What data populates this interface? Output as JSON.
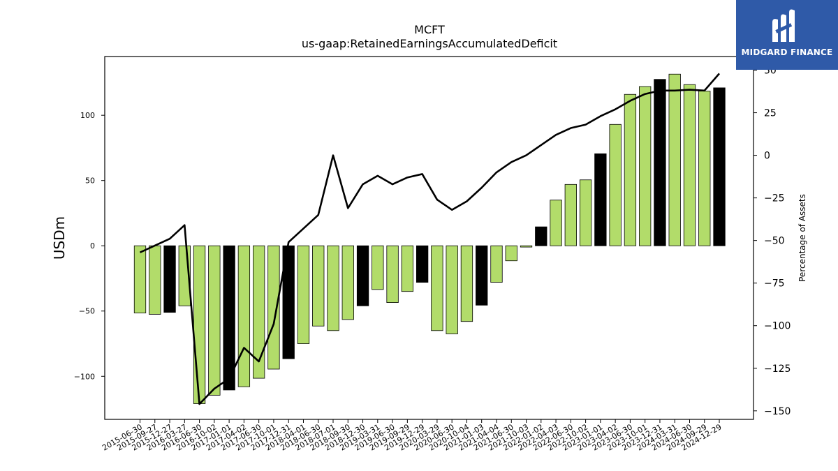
{
  "chart_data": {
    "type": "bar",
    "title": "MCFT",
    "subtitle": "us-gaap:RetainedEarningsAccumulatedDeficit",
    "ylabel": "USDm",
    "y2label": "Percentage of Assets",
    "ylim": [
      -133,
      145
    ],
    "y2lim": [
      -155,
      58
    ],
    "yticks": [
      -100,
      -50,
      0,
      50,
      100
    ],
    "y2ticks": [
      -150,
      -125,
      -100,
      -75,
      -50,
      -25,
      0,
      25,
      50
    ],
    "grid": false,
    "categories": [
      "2015-06-30",
      "2015-09-27",
      "2015-12-27",
      "2016-03-27",
      "2016-06-30",
      "2016-10-02",
      "2017-01-01",
      "2017-04-02",
      "2017-06-30",
      "2017-10-01",
      "2017-12-31",
      "2018-04-01",
      "2018-06-30",
      "2018-07-01",
      "2018-09-30",
      "2018-12-30",
      "2019-03-31",
      "2019-06-30",
      "2019-09-29",
      "2019-12-29",
      "2020-03-29",
      "2020-06-30",
      "2020-10-04",
      "2021-01-03",
      "2021-04-04",
      "2021-06-30",
      "2021-10-03",
      "2022-01-02",
      "2022-04-03",
      "2022-06-30",
      "2022-10-02",
      "2023-01-01",
      "2023-04-02",
      "2023-06-30",
      "2023-10-01",
      "2023-12-31",
      "2024-03-31",
      "2024-06-30",
      "2024-09-29",
      "2024-12-29"
    ],
    "bar_values": [
      -51.5,
      -52.5,
      -51,
      -46,
      -121,
      -114.5,
      -110.5,
      -108,
      -101.5,
      -94.5,
      -86.5,
      -75,
      -61.5,
      -65,
      -56.5,
      -46,
      -33.5,
      -43.5,
      -35,
      -28,
      -65,
      -67.5,
      -58,
      -45.5,
      -28,
      -11.5,
      -1,
      14.5,
      35,
      47,
      50.5,
      70.5,
      93,
      116,
      122,
      127.5,
      131.5,
      123.5,
      118.5,
      121
    ],
    "bar_colors": [
      "#b2dc6a",
      "#b2dc6a",
      "#000000",
      "#b2dc6a",
      "#b2dc6a",
      "#b2dc6a",
      "#000000",
      "#b2dc6a",
      "#b2dc6a",
      "#b2dc6a",
      "#000000",
      "#b2dc6a",
      "#b2dc6a",
      "#b2dc6a",
      "#b2dc6a",
      "#000000",
      "#b2dc6a",
      "#b2dc6a",
      "#b2dc6a",
      "#000000",
      "#b2dc6a",
      "#b2dc6a",
      "#b2dc6a",
      "#000000",
      "#b2dc6a",
      "#b2dc6a",
      "#b2dc6a",
      "#000000",
      "#b2dc6a",
      "#b2dc6a",
      "#b2dc6a",
      "#000000",
      "#b2dc6a",
      "#b2dc6a",
      "#b2dc6a",
      "#000000",
      "#b2dc6a",
      "#b2dc6a",
      "#b2dc6a",
      "#000000"
    ],
    "line_values": [
      -57,
      -53,
      -49,
      -41,
      -146,
      -137,
      -131,
      -113,
      -121,
      -99,
      -51,
      -43,
      -35,
      0,
      -31,
      -17,
      -12,
      -17,
      -13,
      -11,
      -26,
      -32,
      -27,
      -19,
      -10,
      -4,
      0,
      6,
      12,
      16,
      18,
      23,
      27,
      32,
      36,
      38,
      38,
      38.5,
      38,
      48
    ],
    "colors": {
      "highlight": "#b2dc6a",
      "quarter_end": "#000000",
      "line": "#000000"
    }
  },
  "logo": {
    "text": "MIDGARD FINANCE"
  }
}
